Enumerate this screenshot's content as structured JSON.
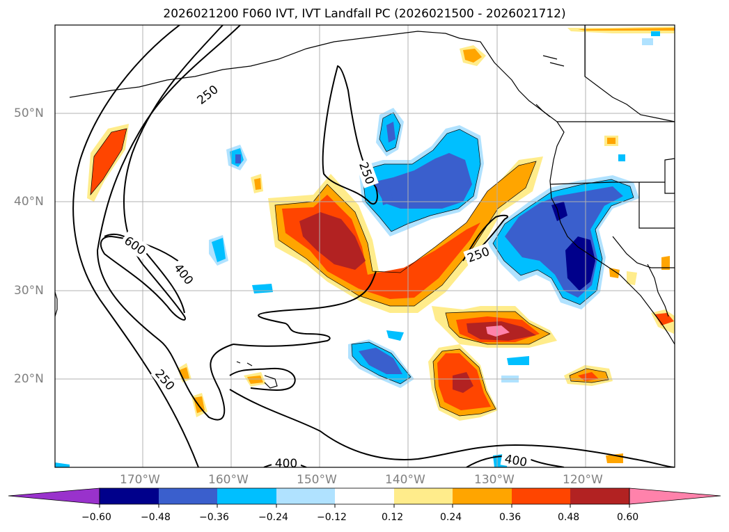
{
  "title": "2026021200 F060 IVT, IVT Landfall PC (2026021500 - 2026021712)",
  "lat_labels": [
    "50°N",
    "40°N",
    "30°N",
    "20°N"
  ],
  "lon_labels": [
    "170°W",
    "160°W",
    "150°W",
    "140°W",
    "130°W",
    "120°W"
  ],
  "contour_labels": [
    "250",
    "250",
    "250",
    "250",
    "400",
    "400",
    "400",
    "600"
  ],
  "colorbar": {
    "ticks": [
      "−0.60",
      "−0.48",
      "−0.36",
      "−0.24",
      "−0.12",
      "0.12",
      "0.24",
      "0.36",
      "0.48",
      "0.60"
    ],
    "colors": [
      "#9932cc",
      "#00008b",
      "#3a5fcd",
      "#00bfff",
      "#b0e2ff",
      "#ffffff",
      "#ffec8b",
      "#ffa500",
      "#ff4500",
      "#b22222",
      "#ff82ab"
    ]
  }
}
